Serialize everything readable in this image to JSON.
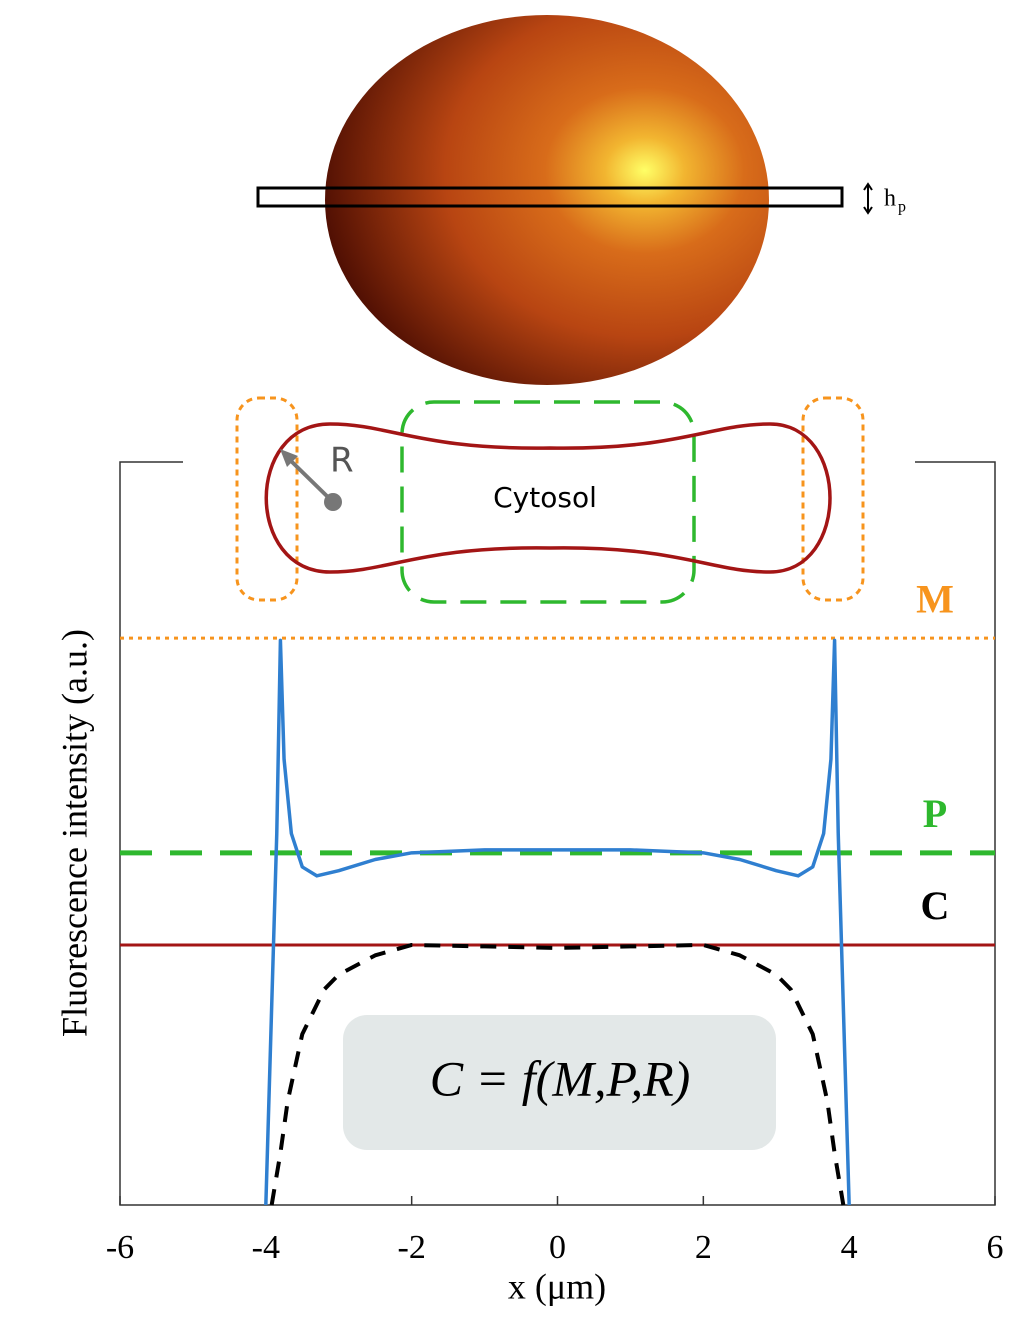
{
  "chart_data": {
    "type": "line",
    "xlabel": "x (μm)",
    "ylabel": "Fluorescence intensity (a.u.)",
    "xlim": [
      -6,
      6
    ],
    "xticks": [
      -6,
      -4,
      -2,
      0,
      2,
      4,
      6
    ],
    "ylim": [
      0,
      1
    ],
    "series": [
      {
        "color": "#2f7fd0",
        "style": "solid",
        "x": [
          -4,
          -3.85,
          -3.8,
          -3.75,
          -3.65,
          -3.5,
          -3.3,
          -3,
          -2.5,
          -2,
          -1,
          0,
          1,
          2,
          2.5,
          3,
          3.3,
          3.5,
          3.65,
          3.75,
          3.8,
          3.85,
          4
        ],
        "values": [
          0,
          0.5,
          0.76,
          0.6,
          0.5,
          0.455,
          0.443,
          0.45,
          0.465,
          0.474,
          0.478,
          0.478,
          0.478,
          0.474,
          0.465,
          0.45,
          0.443,
          0.455,
          0.5,
          0.6,
          0.76,
          0.5,
          0
        ]
      },
      {
        "color": "#000000",
        "style": "dashed",
        "x": [
          -3.92,
          -3.8,
          -3.7,
          -3.5,
          -3.2,
          -3,
          -2.5,
          -2,
          -1,
          0,
          1,
          2,
          2.5,
          3,
          3.2,
          3.5,
          3.7,
          3.8,
          3.92
        ],
        "values": [
          0,
          0.07,
          0.14,
          0.23,
          0.29,
          0.31,
          0.336,
          0.35,
          0.348,
          0.346,
          0.348,
          0.35,
          0.336,
          0.31,
          0.29,
          0.23,
          0.14,
          0.07,
          0
        ]
      }
    ],
    "levels": [
      {
        "name": "M",
        "value": 0.763,
        "color": "#f7941d",
        "style": "dotted"
      },
      {
        "name": "P",
        "value": 0.474,
        "color": "#2eb82e",
        "style": "dashed"
      },
      {
        "name": "C",
        "value": 0.35,
        "color": "#a31515",
        "style": "solid"
      }
    ],
    "annotations": {
      "h": "h",
      "p": "p",
      "R": "R",
      "cytosol": "Cytosol",
      "formula": "C = f(M,P,R)"
    }
  }
}
